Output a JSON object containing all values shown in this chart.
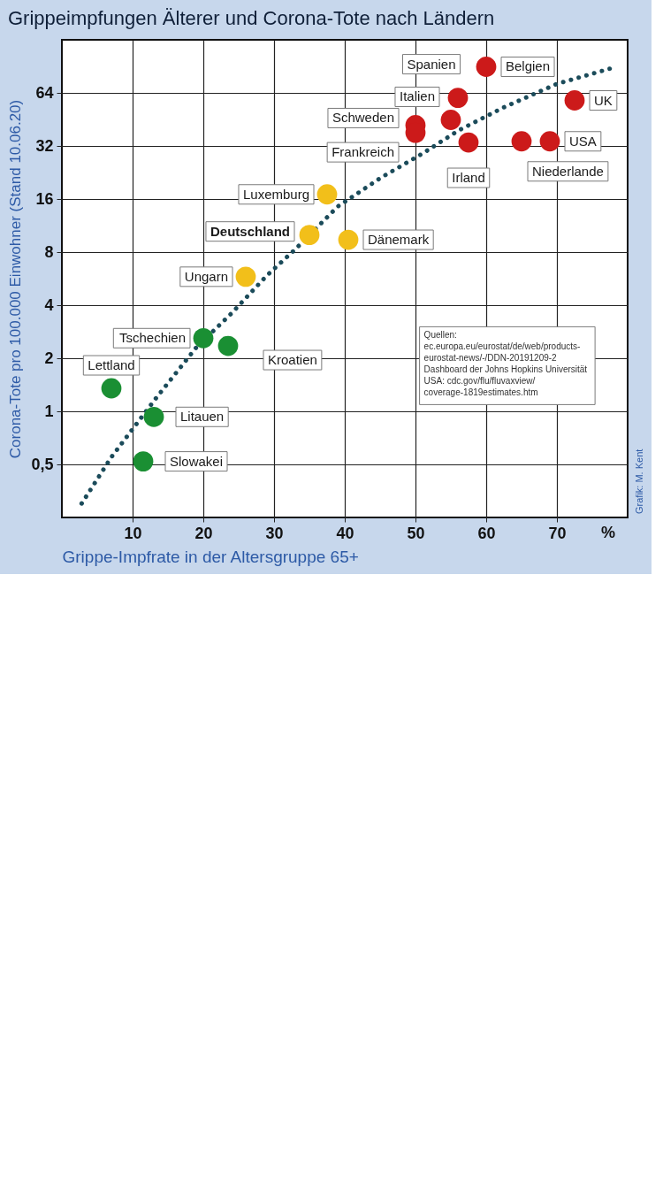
{
  "chart_data": {
    "type": "scatter",
    "title": "Grippeimpfungen Älterer und Corona-Tote nach Ländern",
    "xlabel": "Grippe-Impfrate in der Altersgruppe 65+",
    "ylabel": "Corona-Tote pro 100.000 Einwohner (Stand 10.06.20)",
    "xlim": [
      0,
      80
    ],
    "xticks": [
      10,
      20,
      30,
      40,
      50,
      60,
      70
    ],
    "ylim": [
      0.25,
      128
    ],
    "yticks": [
      {
        "value": 0.5,
        "label": "0,5"
      },
      1,
      2,
      4,
      8,
      16,
      32,
      64
    ],
    "log": "y",
    "grid": true,
    "marker": "circle",
    "series": [
      {
        "type": "line",
        "color": "#1b4b5a",
        "line_style": "dotted",
        "marker": "none",
        "x": [
          2.8,
          7,
          13.4,
          19,
          24,
          29,
          33,
          39,
          45,
          51,
          56,
          62.5,
          70,
          78
        ],
        "values": [
          0.3,
          0.55,
          1.2,
          2.3,
          3.6,
          5.9,
          8.3,
          14.5,
          21,
          29,
          39,
          53,
          72,
          89
        ]
      },
      {
        "color": "#cc1a1a",
        "x": [
          60,
          56,
          55,
          50,
          50,
          57.5,
          72.5,
          69,
          65
        ],
        "values": [
          90,
          60,
          45,
          42,
          38,
          33.5,
          58,
          34,
          34
        ]
      },
      {
        "color": "#f2bf1a",
        "x": [
          37.5,
          35,
          40.5,
          26
        ],
        "values": [
          17,
          10,
          9.4,
          5.8
        ]
      },
      {
        "color": "#1a8f33",
        "x": [
          20,
          23.5,
          7,
          13,
          11.5
        ],
        "values": [
          2.6,
          2.35,
          1.35,
          0.93,
          0.52
        ]
      }
    ],
    "annotations": [
      {
        "text": "Belgien",
        "x": 60,
        "y": 90
      },
      {
        "text": "Spanien",
        "x": 56,
        "y": 60
      },
      {
        "text": "Italien",
        "x": 55,
        "y": 45
      },
      {
        "text": "Schweden",
        "x": 50,
        "y": 42
      },
      {
        "text": "Frankreich",
        "x": 50,
        "y": 38
      },
      {
        "text": "Irland",
        "x": 57.5,
        "y": 33.5
      },
      {
        "text": "UK",
        "x": 72.5,
        "y": 58
      },
      {
        "text": "USA",
        "x": 69,
        "y": 34
      },
      {
        "text": "Niederlande",
        "x": 65,
        "y": 34
      },
      {
        "text": "Luxemburg",
        "x": 37.5,
        "y": 17
      },
      {
        "text": "Deutschland",
        "x": 35,
        "y": 10
      },
      {
        "text": "Dänemark",
        "x": 40.5,
        "y": 9.4
      },
      {
        "text": "Ungarn",
        "x": 26,
        "y": 5.8
      },
      {
        "text": "Tschechien",
        "x": 20,
        "y": 2.6
      },
      {
        "text": "Kroatien",
        "x": 23.5,
        "y": 2.35
      },
      {
        "text": "Lettland",
        "x": 7,
        "y": 1.35
      },
      {
        "text": "Litauen",
        "x": 13,
        "y": 0.93
      },
      {
        "text": "Slowakei",
        "x": 11.5,
        "y": 0.52
      },
      "%",
      "Quellen:\nec.europa.eu/eurostat/de/web/products-\neurostat-news/-/DDN-20191209-2\nDashboard der Johns Hopkins Universität\nUSA: cdc.gov/flu/fluvaxview/\ncoverage-1819estimates.htm",
      "Grafik: M. Kent"
    ]
  }
}
